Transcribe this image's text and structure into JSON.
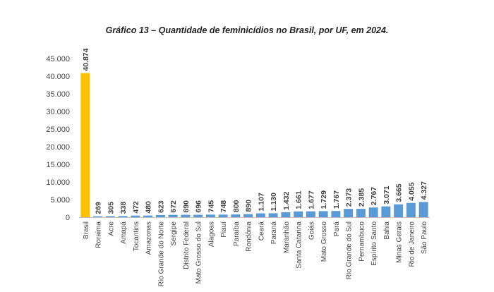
{
  "chart_data": {
    "type": "bar",
    "title": "Gráfico 13 – Quantidade de feminicídios no Brasil, por UF, em 2024.",
    "ylim": [
      0,
      45000
    ],
    "yticks": [
      "0",
      "5.000",
      "10.000",
      "15.000",
      "20.000",
      "25.000",
      "30.000",
      "35.000",
      "40.000",
      "45.000"
    ],
    "categories": [
      "Brasil",
      "Roraima",
      "Acre",
      "Amapá",
      "Tocantins",
      "Amazonas",
      "Rio Grande do Norte",
      "Sergipe",
      "Distrito Federal",
      "Mato Grosso do Sul",
      "Alagoas",
      "Piauí",
      "Paraíba",
      "Rondônia",
      "Ceará",
      "Paraná",
      "Maranhão",
      "Santa Catarina",
      "Goiás",
      "Mato Grosso",
      "Pará",
      "Rio Grande do Sul",
      "Pernambuco",
      "Espírito Santo",
      "Bahia",
      "Minas Gerais",
      "Rio de Janeiro",
      "São Paulo"
    ],
    "values": [
      40874,
      269,
      305,
      338,
      472,
      480,
      623,
      672,
      690,
      696,
      745,
      748,
      800,
      890,
      1107,
      1130,
      1432,
      1661,
      1677,
      1729,
      1767,
      2373,
      2385,
      2767,
      3071,
      3665,
      4055,
      4327
    ],
    "value_labels": [
      "40.874",
      "269",
      "305",
      "338",
      "472",
      "480",
      "623",
      "672",
      "690",
      "696",
      "745",
      "748",
      "800",
      "890",
      "1.107",
      "1.130",
      "1.432",
      "1.661",
      "1.677",
      "1.729",
      "1.767",
      "2.373",
      "2.385",
      "2.767",
      "3.071",
      "3.665",
      "4.055",
      "4.327"
    ],
    "grid": false,
    "colors": {
      "highlight": "#FFC000",
      "bar": "#5B9BD5"
    }
  }
}
